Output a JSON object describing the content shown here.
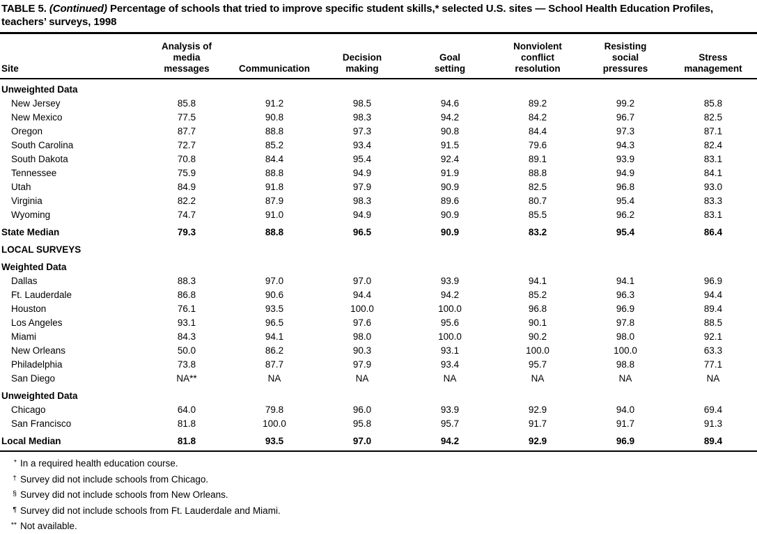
{
  "title": {
    "prefix": "TABLE 5.",
    "continued": "(Continued)",
    "rest": "Percentage of schools that tried to improve specific student skills,* selected U.S. sites — School Health Education Profiles, teachers’ surveys, 1998"
  },
  "table": {
    "columns": [
      "Site",
      "Analysis of\nmedia\nmessages",
      "Communication",
      "Decision\nmaking",
      "Goal\nsetting",
      "Nonviolent\nconflict\nresolution",
      "Resisting\nsocial\npressures",
      "Stress\nmanagement"
    ],
    "rows": [
      {
        "type": "section",
        "label": "Unweighted Data"
      },
      {
        "type": "data",
        "label": "New Jersey",
        "values": [
          "85.8",
          "91.2",
          "98.5",
          "94.6",
          "89.2",
          "99.2",
          "85.8"
        ]
      },
      {
        "type": "data",
        "label": "New Mexico",
        "values": [
          "77.5",
          "90.8",
          "98.3",
          "94.2",
          "84.2",
          "96.7",
          "82.5"
        ]
      },
      {
        "type": "data",
        "label": "Oregon",
        "values": [
          "87.7",
          "88.8",
          "97.3",
          "90.8",
          "84.4",
          "97.3",
          "87.1"
        ]
      },
      {
        "type": "data",
        "label": "South Carolina",
        "values": [
          "72.7",
          "85.2",
          "93.4",
          "91.5",
          "79.6",
          "94.3",
          "82.4"
        ]
      },
      {
        "type": "data",
        "label": "South Dakota",
        "values": [
          "70.8",
          "84.4",
          "95.4",
          "92.4",
          "89.1",
          "93.9",
          "83.1"
        ]
      },
      {
        "type": "data",
        "label": "Tennessee",
        "values": [
          "75.9",
          "88.8",
          "94.9",
          "91.9",
          "88.8",
          "94.9",
          "84.1"
        ]
      },
      {
        "type": "data",
        "label": "Utah",
        "values": [
          "84.9",
          "91.8",
          "97.9",
          "90.9",
          "82.5",
          "96.8",
          "93.0"
        ]
      },
      {
        "type": "data",
        "label": "Virginia",
        "values": [
          "82.2",
          "87.9",
          "98.3",
          "89.6",
          "80.7",
          "95.4",
          "83.3"
        ]
      },
      {
        "type": "data",
        "label": "Wyoming",
        "values": [
          "74.7",
          "91.0",
          "94.9",
          "90.9",
          "85.5",
          "96.2",
          "83.1"
        ]
      },
      {
        "type": "median",
        "label": "State Median",
        "values": [
          "79.3",
          "88.8",
          "96.5",
          "90.9",
          "83.2",
          "95.4",
          "86.4"
        ]
      },
      {
        "type": "section",
        "label": "LOCAL SURVEYS"
      },
      {
        "type": "section",
        "label": "Weighted Data"
      },
      {
        "type": "data",
        "label": "Dallas",
        "values": [
          "88.3",
          "97.0",
          "97.0",
          "93.9",
          "94.1",
          "94.1",
          "96.9"
        ]
      },
      {
        "type": "data",
        "label": "Ft. Lauderdale",
        "values": [
          "86.8",
          "90.6",
          "94.4",
          "94.2",
          "85.2",
          "96.3",
          "94.4"
        ]
      },
      {
        "type": "data",
        "label": "Houston",
        "values": [
          "76.1",
          "93.5",
          "100.0",
          "100.0",
          "96.8",
          "96.9",
          "89.4"
        ]
      },
      {
        "type": "data",
        "label": "Los Angeles",
        "values": [
          "93.1",
          "96.5",
          "97.6",
          "95.6",
          "90.1",
          "97.8",
          "88.5"
        ]
      },
      {
        "type": "data",
        "label": "Miami",
        "values": [
          "84.3",
          "94.1",
          "98.0",
          "100.0",
          "90.2",
          "98.0",
          "92.1"
        ]
      },
      {
        "type": "data",
        "label": "New Orleans",
        "values": [
          "50.0",
          "86.2",
          "90.3",
          "93.1",
          "100.0",
          "100.0",
          "63.3"
        ]
      },
      {
        "type": "data",
        "label": "Philadelphia",
        "values": [
          "73.8",
          "87.7",
          "97.9",
          "93.4",
          "95.7",
          "98.8",
          "77.1"
        ]
      },
      {
        "type": "data",
        "label": "San Diego",
        "values": [
          "NA**",
          "NA",
          "NA",
          "NA",
          "NA",
          "NA",
          "NA"
        ]
      },
      {
        "type": "section",
        "label": "Unweighted Data"
      },
      {
        "type": "data",
        "label": "Chicago",
        "values": [
          "64.0",
          "79.8",
          "96.0",
          "93.9",
          "92.9",
          "94.0",
          "69.4"
        ]
      },
      {
        "type": "data",
        "label": "San Francisco",
        "values": [
          "81.8",
          "100.0",
          "95.8",
          "95.7",
          "91.7",
          "91.7",
          "91.3"
        ]
      },
      {
        "type": "median",
        "label": "Local Median",
        "values": [
          "81.8",
          "93.5",
          "97.0",
          "94.2",
          "92.9",
          "96.9",
          "89.4"
        ]
      }
    ]
  },
  "footnotes": [
    {
      "symbol": "*",
      "text": "In a required health education course."
    },
    {
      "symbol": "†",
      "text": "Survey did not include schools from Chicago."
    },
    {
      "symbol": "§",
      "text": "Survey did not include schools from New Orleans."
    },
    {
      "symbol": "¶",
      "text": "Survey did not include schools from Ft. Lauderdale and Miami."
    },
    {
      "symbol": "**",
      "text": "Not available."
    }
  ]
}
